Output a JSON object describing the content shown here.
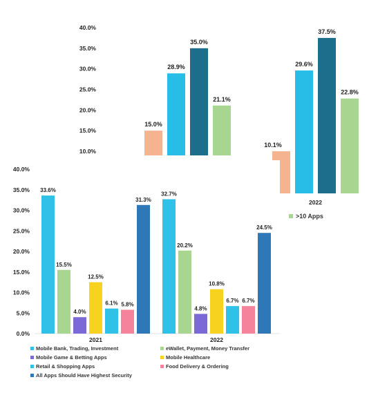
{
  "chart_data": [
    {
      "type": "bar",
      "title": "",
      "categories": [
        "",
        "2022"
      ],
      "yticks": [
        "10.0%",
        "15.0%",
        "20.0%",
        "25.0%",
        "30.0%",
        "35.0%",
        "40.0%"
      ],
      "ylim": [
        10,
        40
      ],
      "colors": [
        "#f5b48f",
        "#28bde6",
        "#1d6d8c",
        "#a8d690"
      ],
      "series": [
        {
          "values": [
            15.0,
            10.1
          ],
          "labels": [
            "15.0%",
            "10.1%"
          ]
        },
        {
          "values": [
            28.9,
            29.6
          ],
          "labels": [
            "28.9%",
            "29.6%"
          ]
        },
        {
          "values": [
            35.0,
            37.5
          ],
          "labels": [
            "35.0%",
            "37.5%"
          ]
        },
        {
          "name": ">10 Apps",
          "values": [
            21.1,
            22.8
          ],
          "labels": [
            "21.1%",
            "22.8%"
          ]
        }
      ],
      "legend": [
        {
          "label": ">10 Apps",
          "color": "#a8d690"
        }
      ],
      "legend_position": "bottom-right"
    },
    {
      "type": "bar",
      "title": "",
      "categories": [
        "2021",
        "2022"
      ],
      "yticks": [
        "0.0%",
        "5.0%",
        "10.0%",
        "15.0%",
        "20.0%",
        "25.0%",
        "30.0%",
        "35.0%",
        "40.0%"
      ],
      "ylim": [
        0,
        40
      ],
      "series": [
        {
          "name": "Mobile Bank, Trading, Investment",
          "color": "#2fc1e8",
          "values": [
            33.6,
            32.7
          ],
          "labels": [
            "33.6%",
            "32.7%"
          ]
        },
        {
          "name": "eWallet, Payment, Money Transfer",
          "color": "#a8d690",
          "values": [
            15.5,
            20.2
          ],
          "labels": [
            "15.5%",
            "20.2%"
          ]
        },
        {
          "name": "Mobile Game & Betting Apps",
          "color": "#7b6ad6",
          "values": [
            4.0,
            4.8
          ],
          "labels": [
            "4.0%",
            "4.8%"
          ]
        },
        {
          "name": "Mobile Healthcare",
          "color": "#f7d21e",
          "values": [
            12.5,
            10.8
          ],
          "labels": [
            "12.5%",
            "10.8%"
          ]
        },
        {
          "name": "Retail & Shopping Apps",
          "color": "#2fc1e8",
          "values": [
            6.1,
            6.7
          ],
          "labels": [
            "6.1%",
            "6.7%"
          ]
        },
        {
          "name": "Food Delivery & Ordering",
          "color": "#f5839b",
          "values": [
            5.8,
            6.7
          ],
          "labels": [
            "5.8%",
            "6.7%"
          ]
        },
        {
          "name": "All Apps Should Have Highest Security",
          "color": "#2f78b7",
          "values": [
            31.3,
            24.5
          ],
          "labels": [
            "31.3%",
            "24.5%"
          ]
        }
      ],
      "legend_position": "bottom"
    }
  ]
}
